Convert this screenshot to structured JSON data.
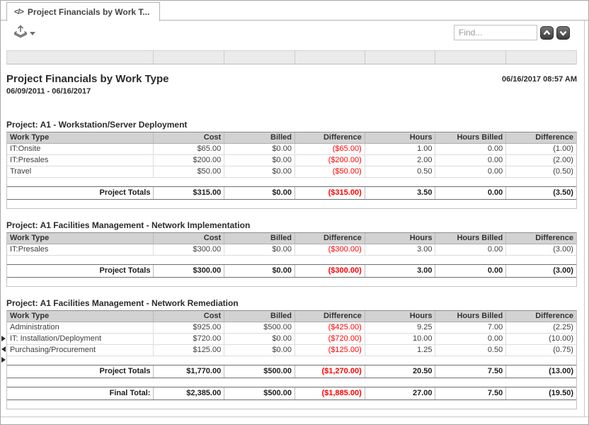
{
  "tab": {
    "icon_glyph": "</>",
    "title": "Project Financials by Work T..."
  },
  "toolbar": {
    "export_icon": "export-icon",
    "dropdown_caret_icon": "caret-down-icon",
    "find_placeholder": "Find...",
    "find_prev_icon": "chevron-up-icon",
    "find_next_icon": "chevron-down-icon"
  },
  "colors": {
    "negative": "#ff0000",
    "header_bg": "#d2d2d2",
    "band_bg": "#ebebeb"
  },
  "report": {
    "title": "Project Financials by Work Type",
    "date_range": "06/09/2011 - 06/16/2017",
    "generated_at": "06/16/2017 08:57 AM",
    "columns": [
      "Work Type",
      "Cost",
      "Billed",
      "Difference",
      "Hours",
      "Hours Billed",
      "Difference"
    ],
    "totals_label": "Project Totals",
    "final_total_label": "Final Total:",
    "projects": [
      {
        "name": "Project: A1 - Workstation/Server Deployment",
        "rows": [
          [
            "IT:Onsite",
            "$65.00",
            "$0.00",
            "($65.00)",
            "1.00",
            "0.00",
            "(1.00)"
          ],
          [
            "IT:Presales",
            "$200.00",
            "$0.00",
            "($200.00)",
            "2.00",
            "0.00",
            "(2.00)"
          ],
          [
            "Travel",
            "$50.00",
            "$0.00",
            "($50.00)",
            "0.50",
            "0.00",
            "(0.50)"
          ]
        ],
        "totals": [
          "$315.00",
          "$0.00",
          "($315.00)",
          "3.50",
          "0.00",
          "(3.50)"
        ]
      },
      {
        "name": "Project: A1 Facilities Management - Network Implementation",
        "rows": [
          [
            "IT:Presales",
            "$300.00",
            "$0.00",
            "($300.00)",
            "3.00",
            "0.00",
            "(3.00)"
          ]
        ],
        "totals": [
          "$300.00",
          "$0.00",
          "($300.00)",
          "3.00",
          "0.00",
          "(3.00)"
        ]
      },
      {
        "name": "Project: A1 Facilities Management - Network Remediation",
        "rows": [
          [
            "Administration",
            "$925.00",
            "$500.00",
            "($425.00)",
            "9.25",
            "7.00",
            "(2.25)"
          ],
          [
            "IT: Installation/Deployment",
            "$720.00",
            "$0.00",
            "($720.00)",
            "10.00",
            "0.00",
            "(10.00)"
          ],
          [
            "Purchasing/Procurement",
            "$125.00",
            "$0.00",
            "($125.00)",
            "1.25",
            "0.50",
            "(0.75)"
          ]
        ],
        "totals": [
          "$1,770.00",
          "$500.00",
          "($1,270.00)",
          "20.50",
          "7.50",
          "(13.00)"
        ]
      }
    ],
    "final_totals": [
      "$2,385.00",
      "$500.00",
      "($1,885.00)",
      "27.00",
      "7.50",
      "(19.50)"
    ]
  }
}
